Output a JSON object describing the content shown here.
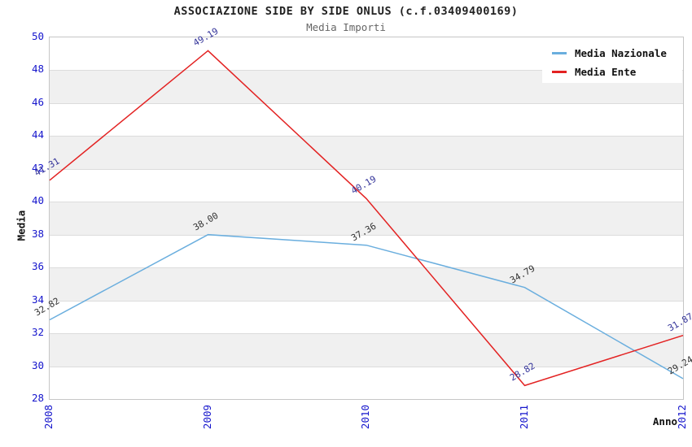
{
  "header": {
    "title": "ASSOCIAZIONE SIDE BY SIDE ONLUS (c.f.03409400169)",
    "subtitle": "Media Importi"
  },
  "chart_data": {
    "type": "line",
    "title": "ASSOCIAZIONE SIDE BY SIDE ONLUS (c.f.03409400169)",
    "subtitle": "Media Importi",
    "xlabel": "Anno",
    "ylabel": "Media",
    "categories": [
      "2008",
      "2009",
      "2010",
      "2011",
      "2012"
    ],
    "series": [
      {
        "name": "Media Nazionale",
        "color": "#6aaede",
        "label_color": "#333333",
        "values": [
          32.82,
          38.0,
          37.36,
          34.79,
          29.24
        ]
      },
      {
        "name": "Media Ente",
        "color": "#e32222",
        "label_color": "#333399",
        "values": [
          41.31,
          49.19,
          40.19,
          28.82,
          31.87
        ]
      }
    ],
    "ylim": [
      28,
      50
    ],
    "ytick_step": 2,
    "yticks": [
      28,
      30,
      32,
      34,
      36,
      38,
      40,
      42,
      44,
      46,
      48,
      50
    ],
    "grid": "horizontal, alternating gray/white bands",
    "band_color": "#f0f0f0",
    "tick_label_color": "#1515cc",
    "legend_position": "top-right",
    "data_labels_visible": true
  }
}
